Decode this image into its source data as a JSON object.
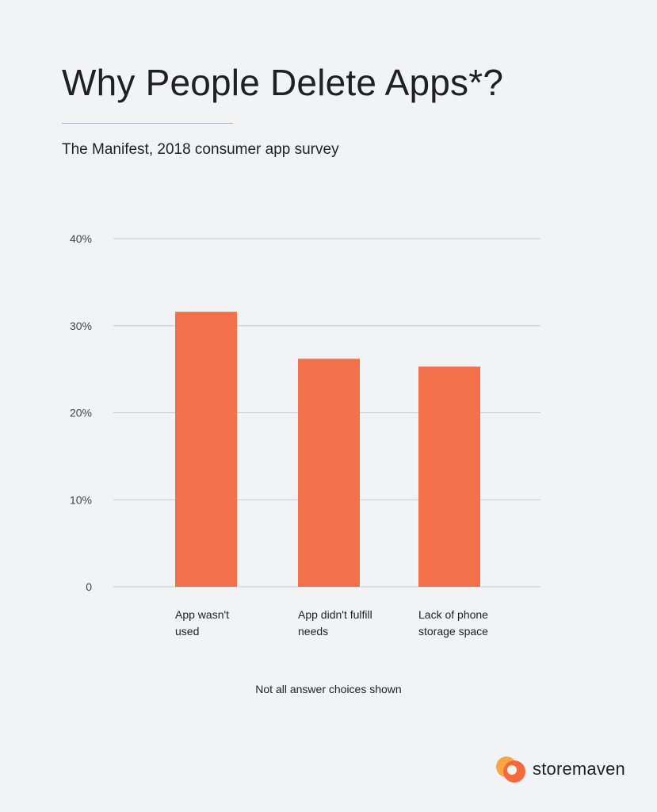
{
  "title": "Why People Delete Apps*?",
  "subtitle": "The Manifest, 2018 consumer app survey",
  "note": "Not all answer choices shown",
  "brand": {
    "name": "storemaven"
  },
  "colors": {
    "bar": "#f3714a",
    "grid": "#c9ccd1",
    "accent_rule": "#f2a57b",
    "logo_light": "#f9a13a",
    "logo_dark": "#f26a3d",
    "background": "#f2f3f5"
  },
  "chart_data": {
    "type": "bar",
    "title": "Why People Delete Apps*?",
    "subtitle": "The Manifest, 2018 consumer app survey",
    "categories": [
      "App wasn't used",
      "App didn't fulfill needs",
      "Lack of phone storage space"
    ],
    "category_lines": [
      [
        "App wasn't",
        "used"
      ],
      [
        "App didn't fulfill",
        "needs"
      ],
      [
        "Lack of phone",
        "storage space"
      ]
    ],
    "values": [
      31.6,
      26.2,
      25.3
    ],
    "unit": "%",
    "ylim": [
      0,
      40
    ],
    "yticks": [
      0,
      10,
      20,
      30,
      40
    ],
    "ytick_labels": [
      "0",
      "10%",
      "20%",
      "30%",
      "40%"
    ],
    "grid": true,
    "xlabel": "",
    "ylabel": ""
  }
}
